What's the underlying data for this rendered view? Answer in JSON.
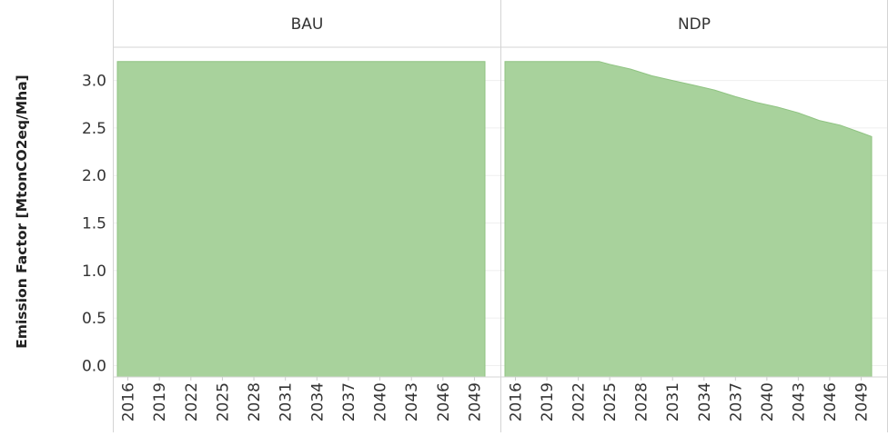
{
  "chart_data": {
    "type": "area",
    "ylabel": "Emission Factor [MtonCO2eq/Mha]",
    "ylim": [
      -0.12,
      3.35
    ],
    "yticks": [
      0.0,
      0.5,
      1.0,
      1.5,
      2.0,
      2.5,
      3.0
    ],
    "ytick_labels": [
      "0.0",
      "0.5",
      "1.0",
      "1.5",
      "2.0",
      "2.5",
      "3.0"
    ],
    "xlim": [
      2015,
      2050
    ],
    "xticks": [
      2016,
      2019,
      2022,
      2025,
      2028,
      2031,
      2034,
      2037,
      2040,
      2043,
      2046,
      2049
    ],
    "xtick_labels": [
      "2016",
      "2019",
      "2022",
      "2025",
      "2028",
      "2031",
      "2034",
      "2037",
      "2040",
      "2043",
      "2046",
      "2049"
    ],
    "grid": true,
    "fill_color": "#a8d29c",
    "stroke_color": "#8fc382",
    "panels": [
      {
        "title": "BAU",
        "x": [
          2015,
          2050
        ],
        "y": [
          3.2,
          3.2
        ]
      },
      {
        "title": "NDP",
        "x": [
          2015,
          2024,
          2025,
          2027,
          2029,
          2031,
          2033,
          2035,
          2037,
          2039,
          2041,
          2043,
          2045,
          2047,
          2049,
          2050
        ],
        "y": [
          3.2,
          3.2,
          3.17,
          3.12,
          3.05,
          3.0,
          2.95,
          2.9,
          2.83,
          2.77,
          2.72,
          2.66,
          2.58,
          2.53,
          2.45,
          2.41
        ]
      }
    ]
  }
}
